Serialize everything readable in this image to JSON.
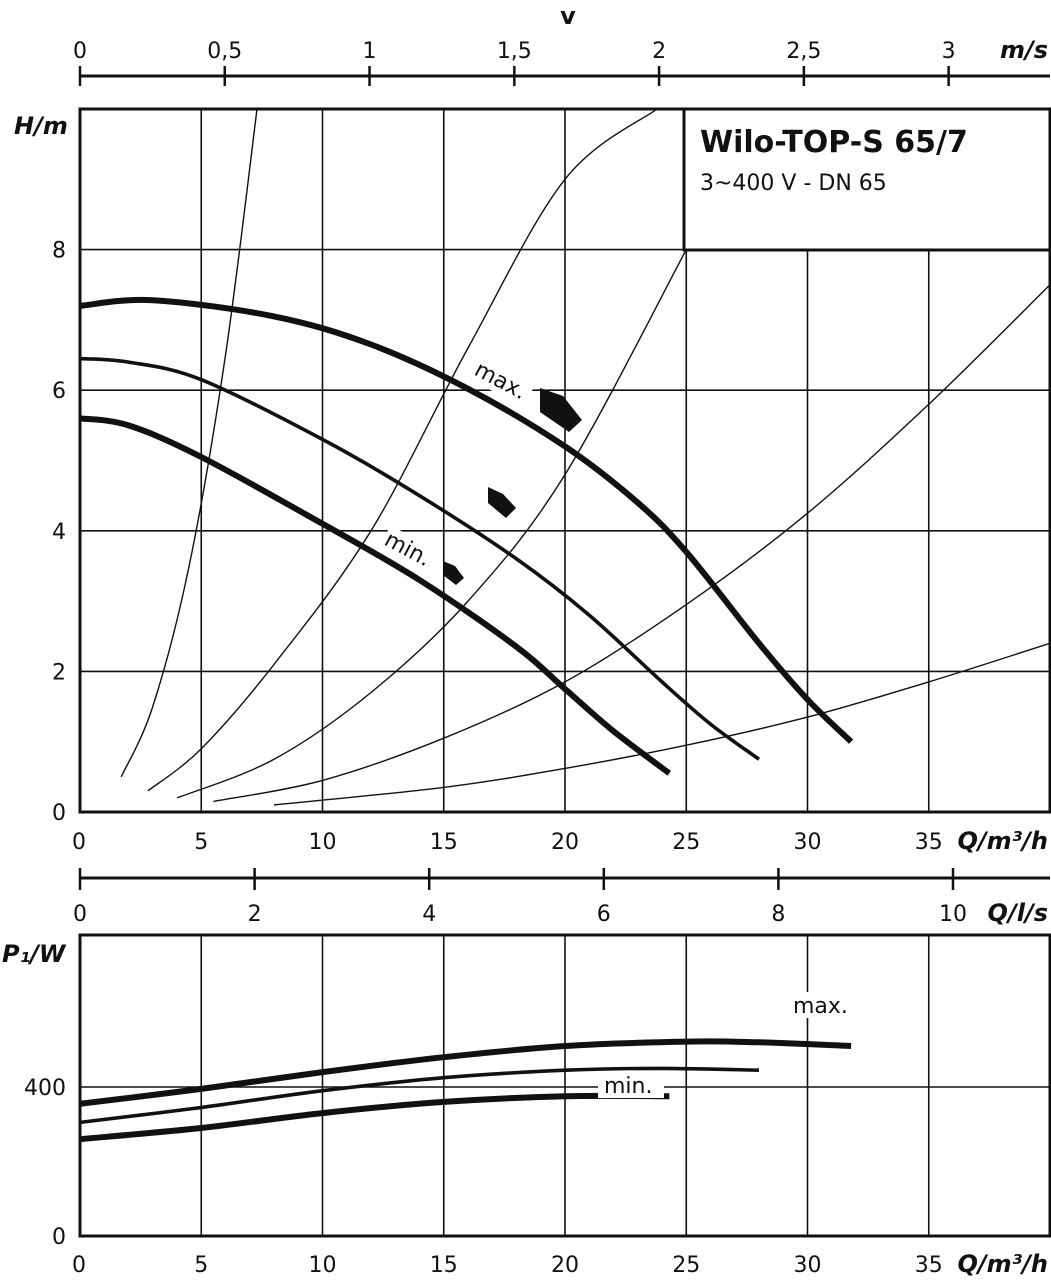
{
  "chart_data": [
    {
      "type": "line",
      "title": "Wilo-TOP-S 65/7",
      "subtitle": "3~400 V - DN 65",
      "xlabel": "Q/m³/h",
      "ylabel": "H/m",
      "xlim": [
        0,
        40
      ],
      "ylim": [
        0,
        10
      ],
      "x_ticks": [
        "0",
        "5",
        "10",
        "15",
        "20",
        "25",
        "30",
        "35"
      ],
      "y_ticks": [
        "0",
        "2",
        "4",
        "6",
        "8"
      ],
      "grid": true,
      "secondary_x_axis_top": {
        "label_letter": "v",
        "unit": "m/s",
        "ticks": [
          "0",
          "0,5",
          "1",
          "1,5",
          "2",
          "2,5",
          "3"
        ],
        "tick_values_m3h": [
          0,
          5.97,
          11.94,
          17.91,
          23.88,
          29.85,
          35.82
        ]
      },
      "secondary_x_axis_bottom": {
        "unit": "Q/l/s",
        "ticks": [
          "0",
          "2",
          "4",
          "6",
          "8",
          "10"
        ],
        "tick_values_m3h": [
          0,
          7.2,
          14.4,
          21.6,
          28.8,
          36.0
        ]
      },
      "series": [
        {
          "name": "max.",
          "x": [
            0,
            3,
            8,
            12,
            16,
            20,
            23,
            25,
            28,
            30,
            31.8
          ],
          "y": [
            7.2,
            7.28,
            7.05,
            6.65,
            6.02,
            5.2,
            4.4,
            3.7,
            2.4,
            1.6,
            1.0
          ]
        },
        {
          "name": "",
          "x": [
            0,
            2,
            5,
            10,
            14,
            18,
            21,
            24,
            26,
            28
          ],
          "y": [
            6.45,
            6.4,
            6.15,
            5.3,
            4.5,
            3.6,
            2.8,
            1.85,
            1.25,
            0.75
          ]
        },
        {
          "name": "min.",
          "x": [
            0,
            2,
            5,
            10,
            14,
            18,
            20,
            22,
            24.3
          ],
          "y": [
            5.6,
            5.5,
            5.05,
            4.1,
            3.3,
            2.35,
            1.75,
            1.15,
            0.55
          ]
        }
      ],
      "system_curves": [
        {
          "x": [
            1.7,
            3,
            4.5,
            6,
            7.3
          ],
          "y": [
            0.5,
            1.5,
            3.5,
            6.5,
            10
          ]
        },
        {
          "x": [
            2.8,
            5,
            8,
            12,
            16,
            20,
            23.8
          ],
          "y": [
            0.3,
            0.9,
            2.1,
            4.0,
            6.6,
            9.0,
            10
          ]
        },
        {
          "x": [
            4,
            8,
            12,
            16,
            20,
            25
          ],
          "y": [
            0.2,
            0.75,
            1.7,
            3.0,
            4.8,
            8.0
          ]
        },
        {
          "x": [
            5.5,
            10,
            15,
            20,
            25,
            30,
            35,
            40
          ],
          "y": [
            0.15,
            0.45,
            1.05,
            1.85,
            2.95,
            4.25,
            5.8,
            7.5
          ]
        },
        {
          "x": [
            8,
            15,
            20,
            25,
            30,
            35,
            40
          ],
          "y": [
            0.1,
            0.35,
            0.62,
            0.95,
            1.35,
            1.85,
            2.4
          ]
        }
      ]
    },
    {
      "type": "line",
      "xlabel": "Q/m³/h",
      "ylabel": "P₁/W",
      "xlim": [
        0,
        40
      ],
      "ylim": [
        0,
        800
      ],
      "x_ticks": [
        "0",
        "5",
        "10",
        "15",
        "20",
        "25",
        "30",
        "35"
      ],
      "y_ticks": [
        "0",
        "400"
      ],
      "grid": true,
      "series": [
        {
          "name": "max.",
          "x": [
            0,
            5,
            10,
            15,
            20,
            25,
            28,
            31.8
          ],
          "y": [
            355,
            395,
            440,
            480,
            510,
            522,
            520,
            510
          ]
        },
        {
          "name": "",
          "x": [
            0,
            5,
            10,
            15,
            20,
            24,
            28
          ],
          "y": [
            305,
            345,
            390,
            425,
            445,
            450,
            445
          ]
        },
        {
          "name": "min.",
          "x": [
            0,
            5,
            10,
            15,
            20,
            24.3
          ],
          "y": [
            260,
            290,
            330,
            360,
            375,
            375
          ]
        }
      ]
    }
  ]
}
